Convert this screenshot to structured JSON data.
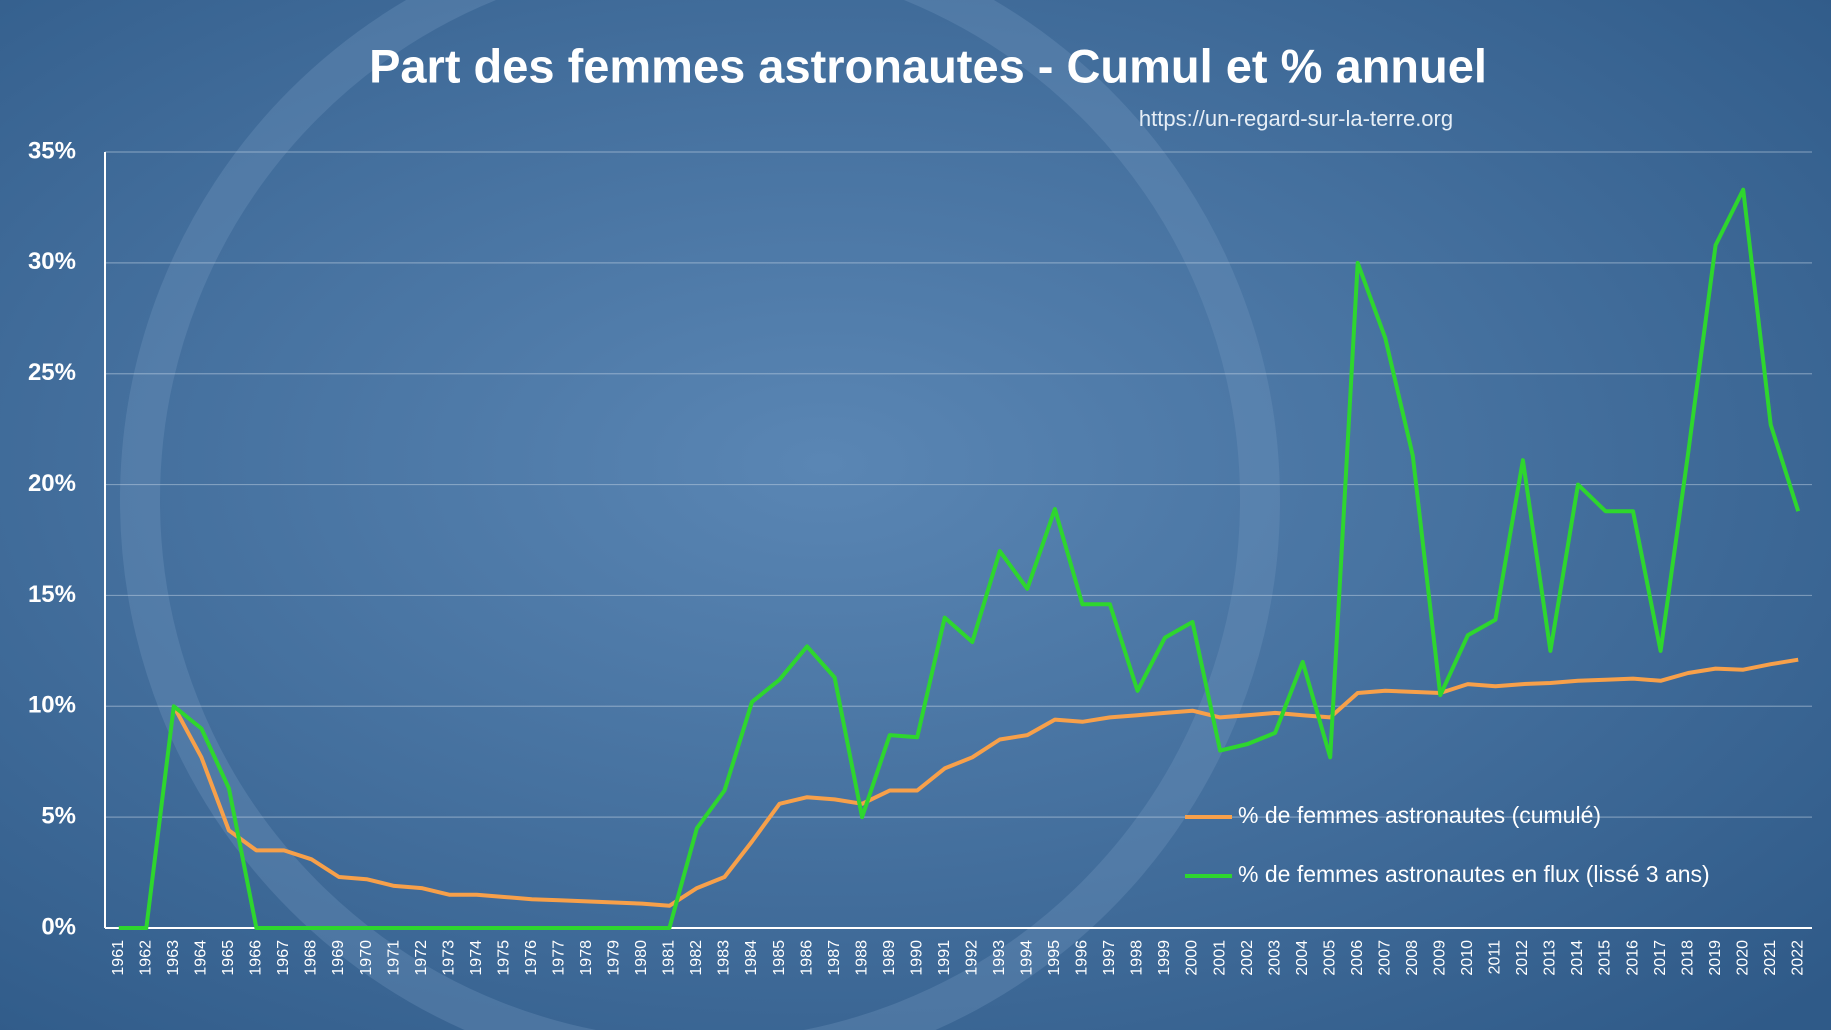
{
  "chart_data": {
    "type": "line",
    "title": "Part des femmes astronautes - Cumul et % annuel",
    "source": "https://un-regard-sur-la-terre.org",
    "categories": [
      "1961",
      "1962",
      "1963",
      "1964",
      "1965",
      "1966",
      "1967",
      "1968",
      "1969",
      "1970",
      "1971",
      "1972",
      "1973",
      "1974",
      "1975",
      "1976",
      "1977",
      "1978",
      "1979",
      "1980",
      "1981",
      "1982",
      "1983",
      "1984",
      "1985",
      "1986",
      "1987",
      "1988",
      "1989",
      "1990",
      "1991",
      "1992",
      "1993",
      "1994",
      "1995",
      "1996",
      "1997",
      "1998",
      "1999",
      "2000",
      "2001",
      "2002",
      "2003",
      "2004",
      "2005",
      "2006",
      "2007",
      "2008",
      "2009",
      "2010",
      "2011",
      "2012",
      "2013",
      "2014",
      "2015",
      "2016",
      "2017",
      "2018",
      "2019",
      "2020",
      "2021",
      "2022"
    ],
    "series": [
      {
        "name": "% de femmes astronautes (cumulé)",
        "color": "#f7a04a",
        "values": [
          null,
          null,
          10,
          7.7,
          4.4,
          3.5,
          3.5,
          3.1,
          2.3,
          2.2,
          1.9,
          1.8,
          1.5,
          1.5,
          1.4,
          1.3,
          1.25,
          1.2,
          1.15,
          1.1,
          1.0,
          1.8,
          2.3,
          3.9,
          5.6,
          5.9,
          5.8,
          5.6,
          6.2,
          6.2,
          7.2,
          7.7,
          8.5,
          8.7,
          9.4,
          9.3,
          9.5,
          9.6,
          9.7,
          9.8,
          9.5,
          9.6,
          9.7,
          9.6,
          9.5,
          10.6,
          10.7,
          10.65,
          10.6,
          11,
          10.9,
          11,
          11.05,
          11.15,
          11.2,
          11.25,
          11.15,
          11.5,
          11.7,
          11.65,
          11.9,
          12.1
        ]
      },
      {
        "name": "% de femmes astronautes en flux (lissé 3 ans)",
        "color": "#2ed62e",
        "values": [
          0,
          0,
          10,
          9,
          6.3,
          0,
          0,
          0,
          0,
          0,
          0,
          0,
          0,
          0,
          0,
          0,
          0,
          0,
          0,
          0,
          0,
          4.5,
          6.2,
          10.2,
          11.2,
          12.7,
          11.3,
          5,
          8.7,
          8.6,
          14,
          12.9,
          17,
          15.3,
          18.9,
          14.6,
          14.6,
          10.7,
          13.1,
          13.8,
          8,
          8.3,
          8.8,
          12,
          7.7,
          30,
          26.6,
          21.3,
          10.5,
          13.2,
          13.9,
          21.1,
          12.5,
          20,
          18.8,
          18.8,
          12.5,
          21.4,
          30.8,
          33.3,
          22.7,
          18.8
        ]
      }
    ],
    "ylim": [
      0,
      35
    ],
    "yticks": [
      {
        "value": 0,
        "label": "0%"
      },
      {
        "value": 5,
        "label": "5%"
      },
      {
        "value": 10,
        "label": "10%"
      },
      {
        "value": 15,
        "label": "15%"
      },
      {
        "value": 20,
        "label": "20%"
      },
      {
        "value": 25,
        "label": "25%"
      },
      {
        "value": 30,
        "label": "30%"
      },
      {
        "value": 35,
        "label": "35%"
      }
    ],
    "grid": true
  }
}
